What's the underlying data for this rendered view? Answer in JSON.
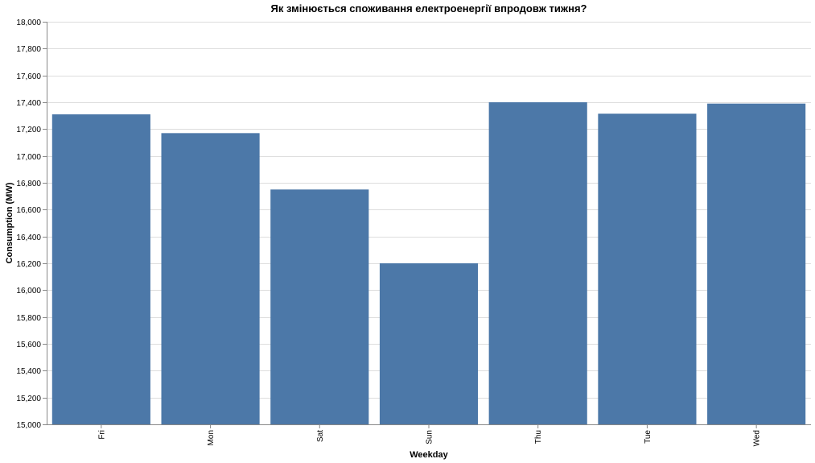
{
  "chart_data": {
    "type": "bar",
    "title": "Як змінюється споживання електроенергії впродовж тижня?",
    "xlabel": "Weekday",
    "ylabel": "Consumption (MW)",
    "categories": [
      "Fri",
      "Mon",
      "Sat",
      "Sun",
      "Thu",
      "Tue",
      "Wed"
    ],
    "values": [
      17310,
      17170,
      16750,
      16200,
      17400,
      17315,
      17390
    ],
    "ylim": [
      15000,
      18000
    ],
    "yticks": [
      15000,
      15200,
      15400,
      15600,
      15800,
      16000,
      16200,
      16400,
      16600,
      16800,
      17000,
      17200,
      17400,
      17600,
      17800,
      18000
    ],
    "ytick_labels": [
      "15,000",
      "15,200",
      "15,400",
      "15,600",
      "15,800",
      "16,000",
      "16,200",
      "16,400",
      "16,600",
      "16,800",
      "17,000",
      "17,200",
      "17,400",
      "17,600",
      "17,800",
      "18,000"
    ],
    "grid": true,
    "bar_color": "#4c78a8"
  }
}
